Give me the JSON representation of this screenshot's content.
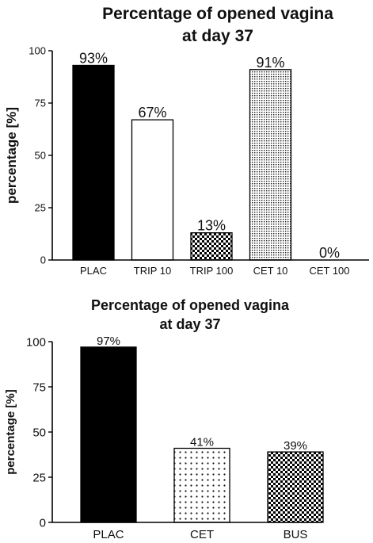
{
  "chart_data": [
    {
      "type": "bar",
      "title": "Percentage of opened vagina",
      "subtitle": "at day 37",
      "ylabel": "percentage [%]",
      "xlabel": "",
      "ylim": [
        0,
        100
      ],
      "yticks": [
        0,
        25,
        50,
        75,
        100
      ],
      "categories": [
        "PLAC",
        "TRIP 10",
        "TRIP 100",
        "CET 10",
        "CET 100"
      ],
      "values": [
        93,
        67,
        13,
        91,
        0
      ],
      "value_labels": [
        "93%",
        "67%",
        "13%",
        "91%",
        "0%"
      ],
      "fills": [
        "solid-black",
        "white",
        "checker",
        "fine-dots",
        "white"
      ],
      "grid": false
    },
    {
      "type": "bar",
      "title": "Percentage of opened vagina",
      "subtitle": "at day 37",
      "ylabel": "percentage [%]",
      "xlabel": "",
      "ylim": [
        0,
        100
      ],
      "yticks": [
        0,
        25,
        50,
        75,
        100
      ],
      "categories": [
        "PLAC",
        "CET",
        "BUS"
      ],
      "values": [
        97,
        41,
        39
      ],
      "value_labels": [
        "97%",
        "41%",
        "39%"
      ],
      "fills": [
        "solid-black",
        "sparse-dots",
        "checker"
      ],
      "grid": false
    }
  ]
}
